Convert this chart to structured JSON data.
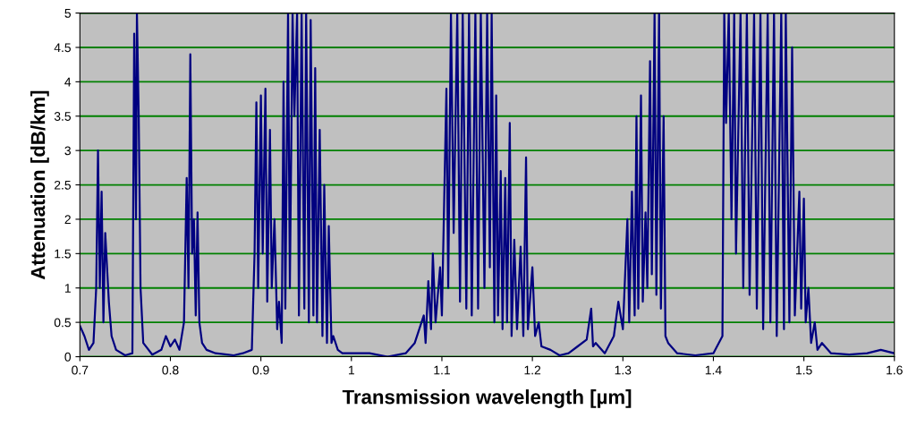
{
  "chart_data": {
    "type": "line",
    "xlabel": "Transmission wavelength [µm]",
    "ylabel": "Attenuation [dB/km]",
    "x": [
      0.7,
      0.705,
      0.71,
      0.715,
      0.718,
      0.72,
      0.722,
      0.724,
      0.726,
      0.728,
      0.732,
      0.735,
      0.74,
      0.75,
      0.758,
      0.76,
      0.762,
      0.763,
      0.765,
      0.767,
      0.77,
      0.78,
      0.79,
      0.795,
      0.8,
      0.805,
      0.81,
      0.815,
      0.818,
      0.82,
      0.822,
      0.824,
      0.826,
      0.828,
      0.83,
      0.832,
      0.835,
      0.84,
      0.85,
      0.87,
      0.88,
      0.89,
      0.893,
      0.895,
      0.897,
      0.9,
      0.902,
      0.905,
      0.907,
      0.91,
      0.912,
      0.915,
      0.918,
      0.92,
      0.923,
      0.925,
      0.927,
      0.93,
      0.932,
      0.935,
      0.937,
      0.94,
      0.942,
      0.945,
      0.948,
      0.95,
      0.953,
      0.955,
      0.958,
      0.96,
      0.962,
      0.965,
      0.968,
      0.97,
      0.973,
      0.975,
      0.978,
      0.98,
      0.985,
      0.99,
      1.0,
      1.02,
      1.04,
      1.06,
      1.07,
      1.08,
      1.082,
      1.085,
      1.088,
      1.09,
      1.093,
      1.098,
      1.1,
      1.105,
      1.107,
      1.11,
      1.113,
      1.117,
      1.12,
      1.123,
      1.127,
      1.13,
      1.133,
      1.137,
      1.14,
      1.143,
      1.147,
      1.15,
      1.153,
      1.155,
      1.158,
      1.16,
      1.162,
      1.165,
      1.167,
      1.17,
      1.172,
      1.175,
      1.177,
      1.18,
      1.183,
      1.187,
      1.19,
      1.193,
      1.195,
      1.2,
      1.203,
      1.207,
      1.21,
      1.22,
      1.23,
      1.24,
      1.25,
      1.26,
      1.265,
      1.267,
      1.27,
      1.28,
      1.29,
      1.295,
      1.3,
      1.305,
      1.307,
      1.31,
      1.313,
      1.315,
      1.317,
      1.32,
      1.322,
      1.325,
      1.327,
      1.33,
      1.332,
      1.335,
      1.337,
      1.34,
      1.342,
      1.345,
      1.347,
      1.35,
      1.36,
      1.38,
      1.4,
      1.41,
      1.412,
      1.414,
      1.417,
      1.42,
      1.423,
      1.425,
      1.43,
      1.433,
      1.437,
      1.44,
      1.445,
      1.448,
      1.452,
      1.455,
      1.46,
      1.463,
      1.467,
      1.47,
      1.475,
      1.478,
      1.48,
      1.484,
      1.487,
      1.49,
      1.495,
      1.497,
      1.5,
      1.502,
      1.505,
      1.508,
      1.512,
      1.515,
      1.52,
      1.53,
      1.55,
      1.57,
      1.585,
      1.6
    ],
    "series": [
      {
        "color": "#000080",
        "values": [
          0.45,
          0.3,
          0.1,
          0.2,
          1.0,
          3.0,
          1.0,
          2.4,
          0.5,
          1.8,
          0.8,
          0.3,
          0.1,
          0.02,
          0.05,
          4.7,
          2.0,
          5.0,
          3.5,
          1.0,
          0.2,
          0.03,
          0.1,
          0.3,
          0.15,
          0.25,
          0.1,
          0.5,
          2.6,
          1.0,
          4.4,
          1.5,
          2.0,
          0.6,
          2.1,
          0.5,
          0.2,
          0.1,
          0.05,
          0.02,
          0.05,
          0.1,
          1.5,
          3.7,
          1.0,
          3.8,
          1.5,
          3.9,
          0.8,
          3.3,
          1.0,
          2.0,
          0.4,
          0.8,
          0.2,
          4.0,
          0.7,
          5.0,
          1.0,
          5.0,
          3.5,
          5.0,
          0.6,
          5.0,
          0.7,
          5.0,
          0.5,
          4.9,
          0.6,
          4.2,
          0.5,
          3.3,
          0.3,
          2.5,
          0.2,
          1.9,
          0.2,
          0.3,
          0.1,
          0.05,
          0.05,
          0.05,
          0.0,
          0.05,
          0.2,
          0.6,
          0.2,
          1.1,
          0.4,
          1.5,
          0.5,
          1.3,
          0.6,
          3.9,
          1.0,
          5.0,
          1.8,
          5.0,
          0.8,
          5.0,
          0.7,
          5.0,
          0.6,
          5.0,
          0.7,
          5.0,
          1.0,
          5.0,
          1.3,
          5.0,
          0.5,
          3.8,
          0.6,
          2.7,
          0.4,
          2.6,
          0.5,
          3.4,
          0.3,
          1.7,
          0.4,
          1.6,
          0.3,
          2.9,
          0.4,
          1.3,
          0.3,
          0.5,
          0.15,
          0.1,
          0.02,
          0.05,
          0.15,
          0.25,
          0.7,
          0.15,
          0.2,
          0.05,
          0.3,
          0.8,
          0.4,
          2.0,
          0.5,
          2.4,
          0.6,
          3.5,
          0.7,
          3.8,
          0.8,
          2.1,
          1.0,
          4.3,
          1.2,
          5.0,
          0.9,
          5.0,
          0.7,
          3.5,
          0.3,
          0.2,
          0.05,
          0.02,
          0.05,
          0.3,
          5.0,
          3.4,
          5.0,
          2.0,
          5.0,
          1.5,
          5.0,
          1.0,
          5.0,
          0.9,
          5.0,
          0.7,
          5.0,
          0.4,
          5.0,
          0.5,
          5.0,
          0.3,
          5.0,
          0.4,
          5.0,
          0.5,
          4.5,
          0.6,
          2.4,
          0.7,
          2.3,
          0.5,
          1.0,
          0.2,
          0.5,
          0.1,
          0.2,
          0.05,
          0.03,
          0.05,
          0.1,
          0.05
        ]
      }
    ],
    "xlim": [
      0.7,
      1.6
    ],
    "xticks": [
      0.7,
      0.8,
      0.9,
      1,
      1.1,
      1.2,
      1.3,
      1.4,
      1.5,
      1.6
    ],
    "ylim": [
      0,
      5
    ],
    "yticks": [
      0,
      0.5,
      1,
      1.5,
      2,
      2.5,
      3,
      3.5,
      4,
      4.5,
      5
    ],
    "grid": "y"
  }
}
